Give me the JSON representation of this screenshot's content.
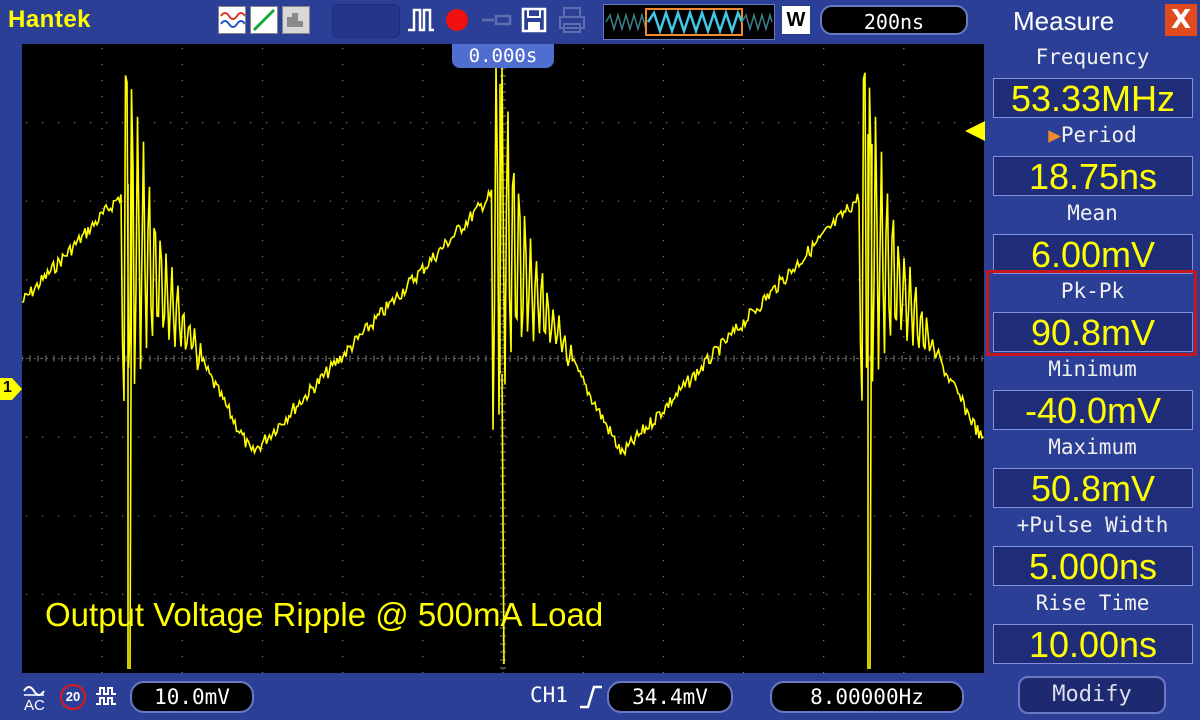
{
  "app": {
    "brand": "Hantek"
  },
  "toolbar": {
    "icons": [
      "waveform-display-icon",
      "line-mode-icon",
      "persistence-icon",
      "pulse-trigger-icon",
      "record-icon",
      "probe-icon",
      "save-icon",
      "print-icon"
    ],
    "timebase": "200ns",
    "acquire_mode": "W"
  },
  "screen": {
    "trigger_time": "0.000s",
    "caption": "Output Voltage Ripple @ 500mA Load",
    "channel_marker": "1",
    "trace_color": "#ffff00"
  },
  "measure": {
    "title": "Measure",
    "close": "X",
    "items": [
      {
        "label": "Frequency",
        "value": "53.33MHz"
      },
      {
        "label": "Period",
        "value": "18.75ns",
        "selected": true
      },
      {
        "label": "Mean",
        "value": "6.00mV"
      },
      {
        "label": "Pk-Pk",
        "value": "90.8mV"
      },
      {
        "label": "Minimum",
        "value": "-40.0mV"
      },
      {
        "label": "Maximum",
        "value": "50.8mV"
      },
      {
        "label": "+Pulse Width",
        "value": "5.000ns"
      },
      {
        "label": "Rise Time",
        "value": "10.00ns"
      }
    ],
    "modify": "Modify"
  },
  "bottom": {
    "coupling": "AC",
    "bw_limit": "20",
    "volts_div": "10.0mV",
    "trigger_channel": "CH1",
    "trigger_level": "34.4mV",
    "trigger_freq": "8.00000Hz"
  },
  "colors": {
    "background": "#2c3f96",
    "screen": "#000000",
    "accent_red": "#c8161d",
    "yellow": "#ffff00"
  }
}
